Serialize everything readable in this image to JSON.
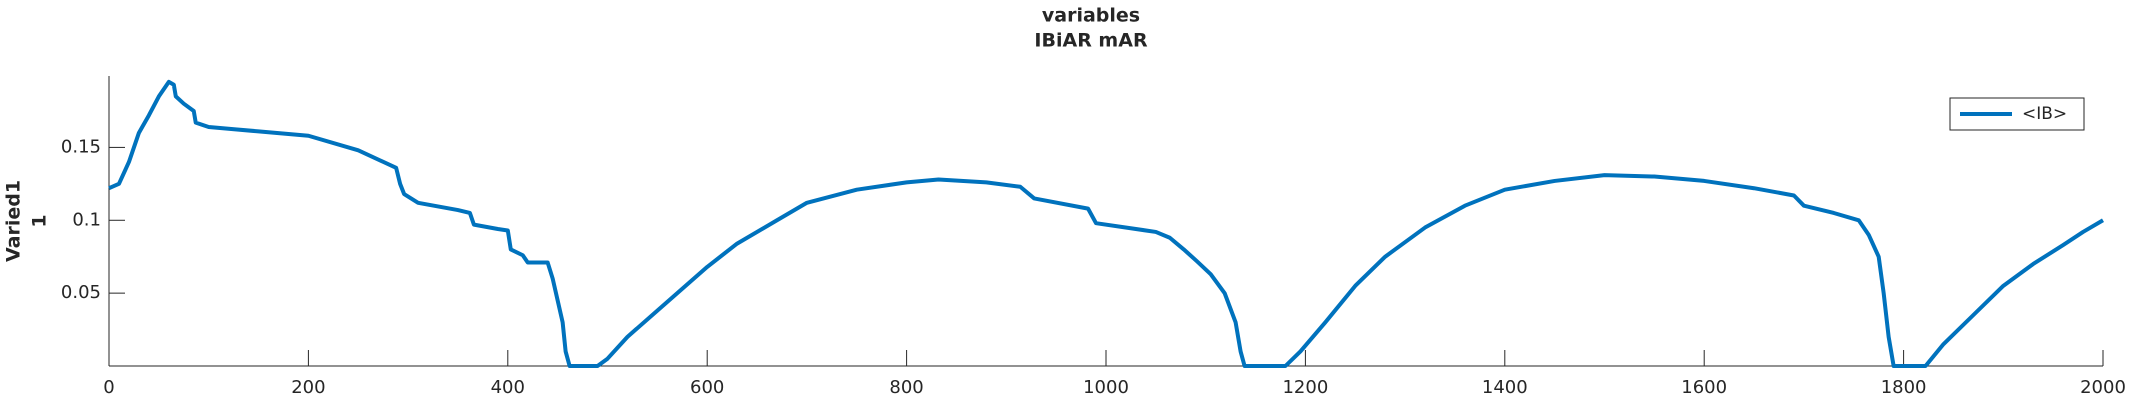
{
  "chart_data": {
    "type": "line",
    "title": "variables",
    "subtitle": "IBiAR mAR",
    "ylabel": [
      "Varied1",
      "1"
    ],
    "x": [
      0,
      10,
      20,
      30,
      40,
      50,
      60,
      65,
      67,
      75,
      85,
      87,
      100,
      150,
      200,
      250,
      288,
      292,
      296,
      310,
      350,
      362,
      366,
      390,
      400,
      403,
      415,
      420,
      440,
      445,
      450,
      455,
      458,
      462,
      490,
      500,
      520,
      550,
      570,
      600,
      630,
      670,
      700,
      750,
      800,
      832,
      880,
      914,
      928,
      982,
      990,
      1050,
      1064,
      1078,
      1091,
      1105,
      1119,
      1130,
      1135,
      1139,
      1180,
      1195,
      1220,
      1250,
      1280,
      1320,
      1360,
      1400,
      1450,
      1500,
      1550,
      1600,
      1650,
      1690,
      1700,
      1730,
      1755,
      1765,
      1775,
      1780,
      1785,
      1790,
      1822,
      1840,
      1870,
      1900,
      1930,
      1960,
      1980,
      2000
    ],
    "series": [
      {
        "name": "<IB>",
        "color": "#0072bd",
        "values": [
          0.122,
          0.125,
          0.14,
          0.16,
          0.172,
          0.185,
          0.195,
          0.193,
          0.185,
          0.18,
          0.175,
          0.167,
          0.164,
          0.161,
          0.158,
          0.148,
          0.136,
          0.125,
          0.118,
          0.112,
          0.107,
          0.105,
          0.097,
          0.094,
          0.093,
          0.08,
          0.076,
          0.071,
          0.071,
          0.06,
          0.045,
          0.03,
          0.01,
          0,
          0,
          0.005,
          0.02,
          0.038,
          0.05,
          0.068,
          0.084,
          0.1,
          0.112,
          0.121,
          0.126,
          0.128,
          0.126,
          0.123,
          0.115,
          0.108,
          0.098,
          0.092,
          0.088,
          0.08,
          0.072,
          0.063,
          0.05,
          0.03,
          0.01,
          0,
          0,
          0.01,
          0.03,
          0.055,
          0.075,
          0.095,
          0.11,
          0.121,
          0.127,
          0.131,
          0.13,
          0.127,
          0.122,
          0.117,
          0.11,
          0.105,
          0.1,
          0.09,
          0.075,
          0.05,
          0.02,
          0,
          0,
          0.015,
          0.035,
          0.055,
          0.07,
          0.083,
          0.092,
          0.1
        ]
      }
    ],
    "xlim": [
      0,
      2000
    ],
    "xticks": [
      0,
      200,
      400,
      600,
      800,
      1000,
      1200,
      1400,
      1600,
      1800,
      2000
    ],
    "ylim": [
      0,
      0.199
    ],
    "yticks": [
      0.05,
      0.1,
      0.15
    ],
    "legend": "upper right"
  }
}
